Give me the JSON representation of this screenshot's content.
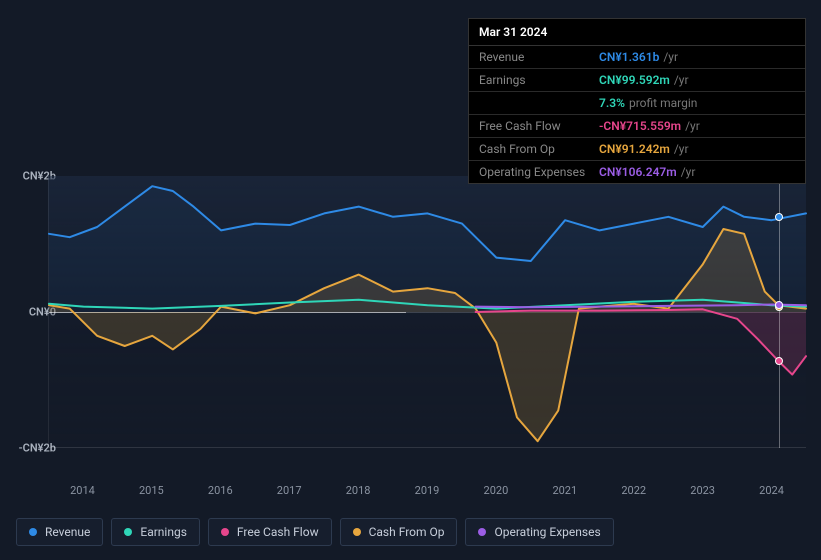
{
  "colors": {
    "revenue": "#2e8ae6",
    "earnings": "#2fd6b8",
    "fcf": "#e6468c",
    "cfo": "#e6a63e",
    "opex": "#9b5de5",
    "bg": "#131a27",
    "text": "#c7ceda",
    "muted": "#8a93a1"
  },
  "tooltip": {
    "date": "Mar 31 2024",
    "rows": [
      {
        "label": "Revenue",
        "value": "CN¥1.361b",
        "unit": "/yr",
        "colorKey": "revenue"
      },
      {
        "label": "Earnings",
        "value": "CN¥99.592m",
        "unit": "/yr",
        "colorKey": "earnings"
      },
      {
        "label": "",
        "value": "7.3%",
        "unit": "profit margin",
        "colorKey": "earnings"
      },
      {
        "label": "Free Cash Flow",
        "value": "-CN¥715.559m",
        "unit": "/yr",
        "colorKey": "fcf"
      },
      {
        "label": "Cash From Op",
        "value": "CN¥91.242m",
        "unit": "/yr",
        "colorKey": "cfo"
      },
      {
        "label": "Operating Expenses",
        "value": "CN¥106.247m",
        "unit": "/yr",
        "colorKey": "opex"
      }
    ]
  },
  "chart": {
    "type": "area-line",
    "y": {
      "min": -2,
      "max": 2,
      "ticks": [
        {
          "v": 2,
          "label": "CN¥2b"
        },
        {
          "v": 0,
          "label": "CN¥0"
        },
        {
          "v": -2,
          "label": "-CN¥2b"
        }
      ]
    },
    "x": {
      "min": 2013.5,
      "max": 2024.5,
      "ticks": [
        2014,
        2015,
        2016,
        2017,
        2018,
        2019,
        2020,
        2021,
        2022,
        2023,
        2024
      ]
    },
    "cursor_x": 2024.1,
    "series": {
      "revenue": {
        "label": "Revenue",
        "points": [
          [
            2013.5,
            1.15
          ],
          [
            2013.8,
            1.1
          ],
          [
            2014.2,
            1.25
          ],
          [
            2014.6,
            1.55
          ],
          [
            2015.0,
            1.85
          ],
          [
            2015.3,
            1.78
          ],
          [
            2015.6,
            1.55
          ],
          [
            2016.0,
            1.2
          ],
          [
            2016.5,
            1.3
          ],
          [
            2017.0,
            1.28
          ],
          [
            2017.5,
            1.45
          ],
          [
            2018.0,
            1.55
          ],
          [
            2018.5,
            1.4
          ],
          [
            2019.0,
            1.45
          ],
          [
            2019.5,
            1.3
          ],
          [
            2020.0,
            0.8
          ],
          [
            2020.5,
            0.75
          ],
          [
            2021.0,
            1.35
          ],
          [
            2021.5,
            1.2
          ],
          [
            2022.0,
            1.3
          ],
          [
            2022.5,
            1.4
          ],
          [
            2023.0,
            1.25
          ],
          [
            2023.3,
            1.55
          ],
          [
            2023.6,
            1.4
          ],
          [
            2024.0,
            1.35
          ],
          [
            2024.5,
            1.45
          ]
        ],
        "marker_y": 1.4
      },
      "earnings": {
        "label": "Earnings",
        "points": [
          [
            2013.5,
            0.12
          ],
          [
            2014.0,
            0.08
          ],
          [
            2015.0,
            0.05
          ],
          [
            2016.0,
            0.09
          ],
          [
            2017.0,
            0.14
          ],
          [
            2018.0,
            0.18
          ],
          [
            2019.0,
            0.1
          ],
          [
            2020.0,
            0.05
          ],
          [
            2021.0,
            0.1
          ],
          [
            2022.0,
            0.15
          ],
          [
            2023.0,
            0.18
          ],
          [
            2024.0,
            0.1
          ],
          [
            2024.5,
            0.08
          ]
        ]
      },
      "fcf": {
        "label": "Free Cash Flow",
        "points": [
          [
            2019.7,
            0.0
          ],
          [
            2020.5,
            0.02
          ],
          [
            2021.5,
            0.02
          ],
          [
            2022.5,
            0.03
          ],
          [
            2023.0,
            0.04
          ],
          [
            2023.5,
            -0.1
          ],
          [
            2023.8,
            -0.4
          ],
          [
            2024.1,
            -0.72
          ],
          [
            2024.3,
            -0.92
          ],
          [
            2024.5,
            -0.65
          ]
        ],
        "marker_y": -0.72
      },
      "cfo": {
        "label": "Cash From Op",
        "points": [
          [
            2013.5,
            0.1
          ],
          [
            2013.8,
            0.05
          ],
          [
            2014.2,
            -0.35
          ],
          [
            2014.6,
            -0.5
          ],
          [
            2015.0,
            -0.35
          ],
          [
            2015.3,
            -0.55
          ],
          [
            2015.7,
            -0.25
          ],
          [
            2016.0,
            0.08
          ],
          [
            2016.5,
            -0.02
          ],
          [
            2017.0,
            0.1
          ],
          [
            2017.5,
            0.35
          ],
          [
            2018.0,
            0.55
          ],
          [
            2018.5,
            0.3
          ],
          [
            2019.0,
            0.35
          ],
          [
            2019.4,
            0.28
          ],
          [
            2019.7,
            0.05
          ],
          [
            2020.0,
            -0.45
          ],
          [
            2020.3,
            -1.55
          ],
          [
            2020.6,
            -1.9
          ],
          [
            2020.9,
            -1.45
          ],
          [
            2021.2,
            0.05
          ],
          [
            2021.5,
            0.08
          ],
          [
            2022.0,
            0.12
          ],
          [
            2022.5,
            0.05
          ],
          [
            2023.0,
            0.7
          ],
          [
            2023.3,
            1.22
          ],
          [
            2023.6,
            1.15
          ],
          [
            2023.9,
            0.3
          ],
          [
            2024.1,
            0.1
          ],
          [
            2024.5,
            0.05
          ]
        ],
        "marker_y": 0.08
      },
      "opex": {
        "label": "Operating Expenses",
        "points": [
          [
            2019.7,
            0.08
          ],
          [
            2020.5,
            0.07
          ],
          [
            2021.5,
            0.08
          ],
          [
            2022.5,
            0.09
          ],
          [
            2023.5,
            0.1
          ],
          [
            2024.0,
            0.11
          ],
          [
            2024.5,
            0.1
          ]
        ],
        "marker_y": 0.11
      }
    }
  },
  "legend": [
    {
      "key": "revenue",
      "label": "Revenue"
    },
    {
      "key": "earnings",
      "label": "Earnings"
    },
    {
      "key": "fcf",
      "label": "Free Cash Flow"
    },
    {
      "key": "cfo",
      "label": "Cash From Op"
    },
    {
      "key": "opex",
      "label": "Operating Expenses"
    }
  ]
}
